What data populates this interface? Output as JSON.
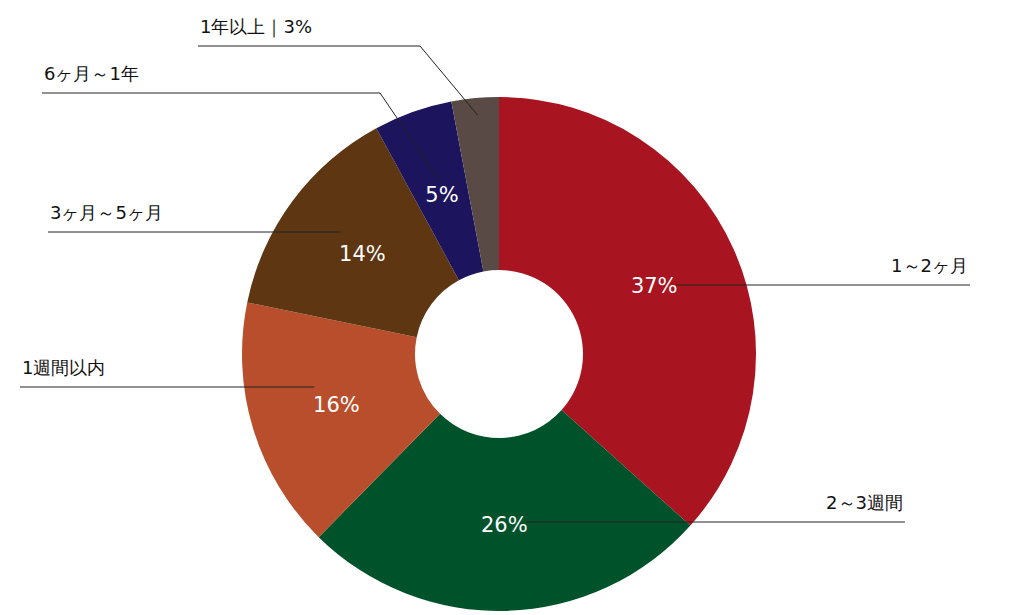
{
  "chart_data": {
    "type": "pie",
    "categories": [
      "1～2ヶ月",
      "2～3週間",
      "1週間以内",
      "3ヶ月～5ヶ月",
      "6ヶ月～1年",
      "1年以上｜3%"
    ],
    "values": [
      37,
      26,
      16,
      14,
      5,
      3
    ],
    "value_labels": [
      "37%",
      "26%",
      "16%",
      "14%",
      "5%",
      null
    ],
    "colors": [
      "#a8141f",
      "#00522a",
      "#b94e2c",
      "#5e3612",
      "#1c145c",
      "#594a45"
    ],
    "data_labels": true
  }
}
